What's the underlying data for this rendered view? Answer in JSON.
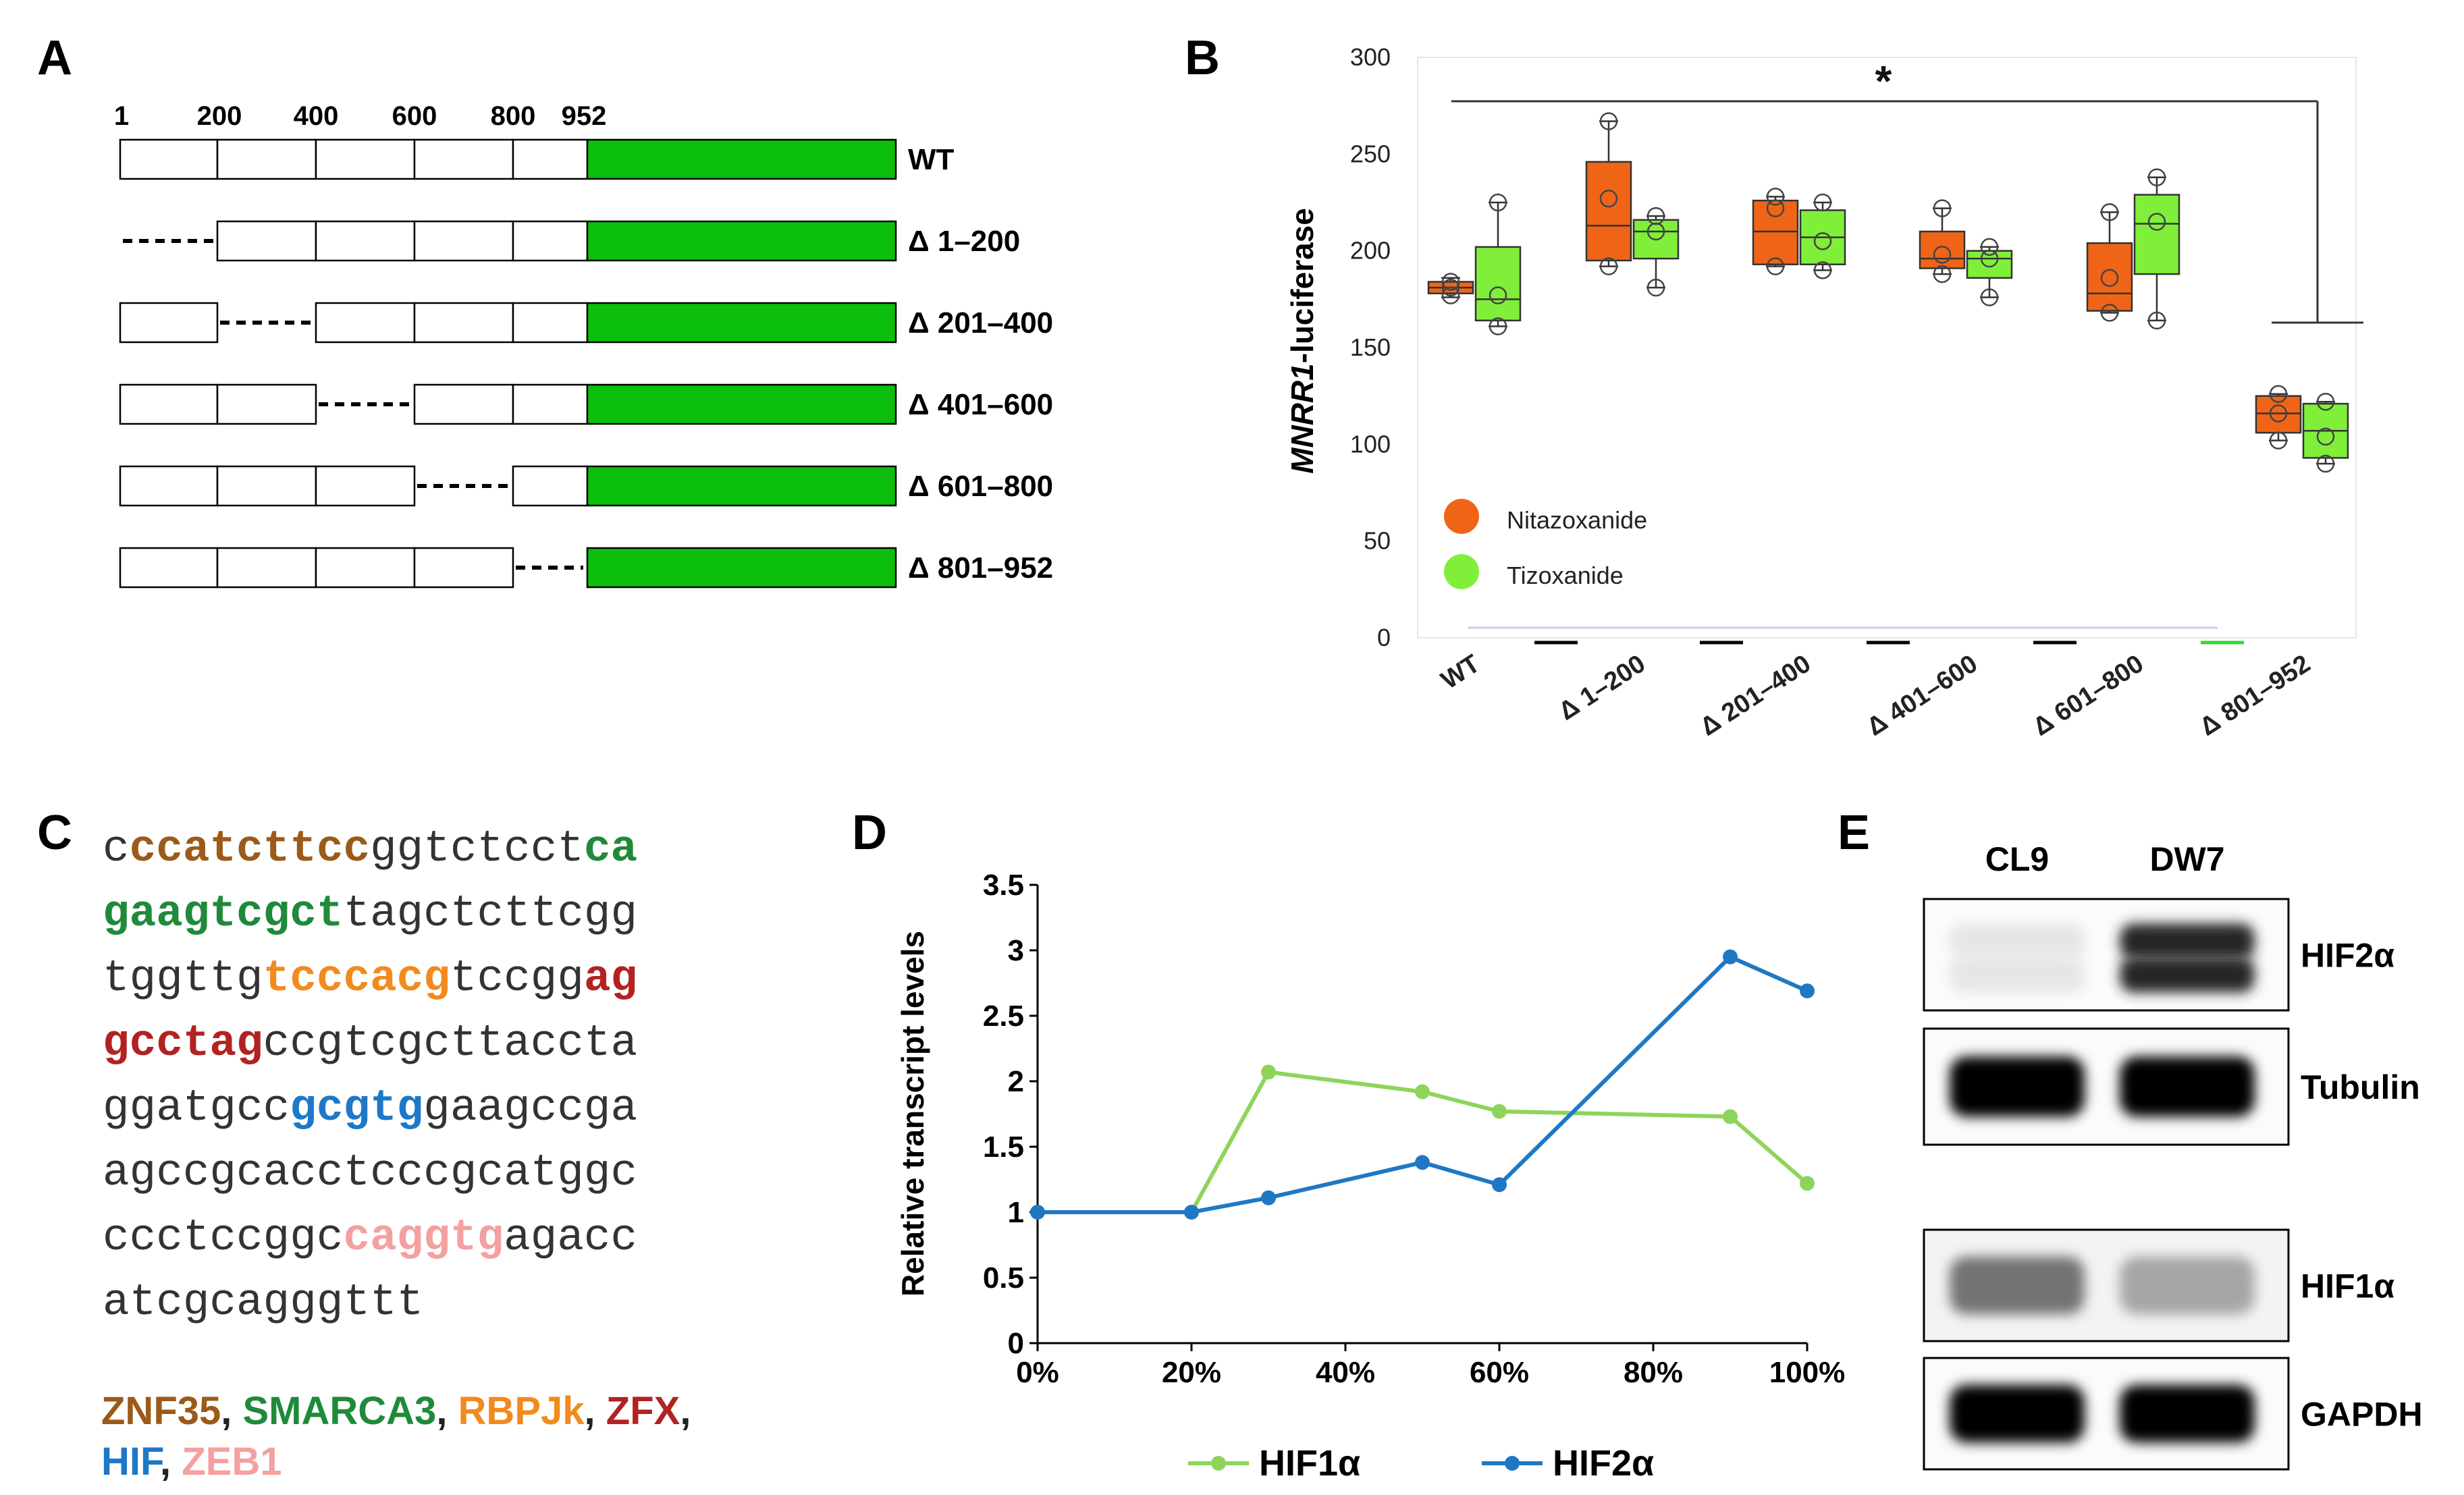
{
  "panel_labels": {
    "a": "A",
    "b": "B",
    "c": "C",
    "d": "D",
    "e": "E"
  },
  "panel_a": {
    "positions": [
      "1",
      "200",
      "400",
      "600",
      "800",
      "952"
    ],
    "constructs": [
      {
        "label": "WT",
        "deleted": null
      },
      {
        "label": "Δ 1–200",
        "deleted": 0
      },
      {
        "label": "Δ 201–400",
        "deleted": 1
      },
      {
        "label": "Δ 401–600",
        "deleted": 2
      },
      {
        "label": "Δ 601–800",
        "deleted": 3
      },
      {
        "label": "Δ 801–952",
        "deleted": 4
      }
    ],
    "reporter_color": "#0cbf0c"
  },
  "panel_c": {
    "sequence_lines": [
      [
        {
          "t": "c",
          "c": "plain"
        },
        {
          "t": "ccatcttcc",
          "c": "ZNF35"
        },
        {
          "t": "ggtctcct",
          "c": "plain"
        },
        {
          "t": "ca",
          "c": "SMARCA3"
        }
      ],
      [
        {
          "t": "gaagtcgct",
          "c": "SMARCA3"
        },
        {
          "t": "tagctcttcgg",
          "c": "plain"
        }
      ],
      [
        {
          "t": "tggttg",
          "c": "plain"
        },
        {
          "t": "tcccacg",
          "c": "RBPJk"
        },
        {
          "t": "tccgg",
          "c": "plain"
        },
        {
          "t": "ag",
          "c": "ZFX"
        }
      ],
      [
        {
          "t": "gcctag",
          "c": "ZFX"
        },
        {
          "t": "ccgtcgcttaccta",
          "c": "plain"
        }
      ],
      [
        {
          "t": "ggatgcc",
          "c": "plain"
        },
        {
          "t": "gcgtg",
          "c": "HIF"
        },
        {
          "t": "gaagccga",
          "c": "plain"
        }
      ],
      [
        {
          "t": "agccgcacctcccgcatggc",
          "c": "plain"
        }
      ],
      [
        {
          "t": "ccctccggc",
          "c": "plain"
        },
        {
          "t": "caggtg",
          "c": "ZEB1"
        },
        {
          "t": "agacc",
          "c": "plain"
        }
      ],
      [
        {
          "t": "atcgcagggttt",
          "c": "plain"
        }
      ]
    ],
    "legend_lines": [
      [
        {
          "t": "ZNF35",
          "c": "ZNF35"
        },
        {
          "t": ", ",
          "c": "plain"
        },
        {
          "t": "SMARCA3",
          "c": "SMARCA3"
        },
        {
          "t": ", ",
          "c": "plain"
        },
        {
          "t": "RBPJk",
          "c": "RBPJk"
        },
        {
          "t": ", ",
          "c": "plain"
        },
        {
          "t": "ZFX",
          "c": "ZFX"
        },
        {
          "t": ",",
          "c": "plain"
        }
      ],
      [
        {
          "t": "HIF",
          "c": "HIF"
        },
        {
          "t": ", ",
          "c": "plain"
        },
        {
          "t": "ZEB1",
          "c": "ZEB1"
        }
      ]
    ],
    "colors": {
      "plain": "#333333",
      "ZNF35": "#9c5a1a",
      "SMARCA3": "#1f8a3a",
      "RBPJk": "#f28a1e",
      "ZFX": "#b22222",
      "HIF": "#1e78c8",
      "ZEB1": "#f4a0a0"
    }
  },
  "panel_e": {
    "lanes": [
      "CL9",
      "DW7"
    ],
    "blots": [
      {
        "label": "HIF2α",
        "intensity": [
          0.1,
          0.85
        ]
      },
      {
        "label": "Tubulin",
        "intensity": [
          1.0,
          1.0
        ]
      },
      {
        "label": "HIF1α",
        "intensity": [
          0.55,
          0.35
        ]
      },
      {
        "label": "GAPDH",
        "intensity": [
          1.0,
          1.0
        ]
      }
    ]
  },
  "chart_data": [
    {
      "panel": "B",
      "type": "box",
      "ylabel_italic": "MNRR1",
      "ylabel_rest": "-luciferase",
      "ylim": [
        0,
        300
      ],
      "yticks": [
        0,
        50,
        100,
        150,
        200,
        250,
        300
      ],
      "categories": [
        "WT",
        "Δ 1–200",
        "Δ 201–400",
        "Δ 401–600",
        "Δ 601–800",
        "Δ 801–952"
      ],
      "significance": "*",
      "legend": [
        {
          "name": "Nitazoxanide",
          "color": "#f06418"
        },
        {
          "name": "Tizoxanide",
          "color": "#80ef3a"
        }
      ],
      "series": [
        {
          "name": "Nitazoxanide",
          "color": "#f06418",
          "boxes": [
            {
              "min": 176,
              "q1": 178,
              "median": 181,
              "q3": 184,
              "max": 186,
              "points": [
                177,
                181,
                184
              ]
            },
            {
              "min": 192,
              "q1": 195,
              "median": 213,
              "q3": 246,
              "max": 267,
              "points": [
                192,
                227,
                267
              ]
            },
            {
              "min": 192,
              "q1": 193,
              "median": 210,
              "q3": 226,
              "max": 228,
              "points": [
                192,
                222,
                228
              ]
            },
            {
              "min": 188,
              "q1": 191,
              "median": 196,
              "q3": 210,
              "max": 222,
              "points": [
                188,
                198,
                222
              ]
            },
            {
              "min": 168,
              "q1": 169,
              "median": 178,
              "q3": 204,
              "max": 220,
              "points": [
                168,
                186,
                220
              ]
            },
            {
              "min": 102,
              "q1": 106,
              "median": 116,
              "q3": 125,
              "max": 126,
              "points": [
                102,
                116,
                126
              ]
            }
          ]
        },
        {
          "name": "Tizoxanide",
          "color": "#80ef3a",
          "boxes": [
            {
              "min": 161,
              "q1": 164,
              "median": 175,
              "q3": 202,
              "max": 225,
              "points": [
                161,
                177,
                225
              ]
            },
            {
              "min": 181,
              "q1": 196,
              "median": 210,
              "q3": 216,
              "max": 218,
              "points": [
                181,
                210,
                218
              ]
            },
            {
              "min": 190,
              "q1": 193,
              "median": 207,
              "q3": 221,
              "max": 225,
              "points": [
                190,
                205,
                225
              ]
            },
            {
              "min": 176,
              "q1": 186,
              "median": 196,
              "q3": 200,
              "max": 202,
              "points": [
                176,
                196,
                202
              ]
            },
            {
              "min": 164,
              "q1": 188,
              "median": 214,
              "q3": 229,
              "max": 238,
              "points": [
                164,
                215,
                238
              ]
            },
            {
              "min": 90,
              "q1": 93,
              "median": 107,
              "q3": 121,
              "max": 122,
              "points": [
                90,
                104,
                122
              ]
            }
          ]
        }
      ]
    },
    {
      "panel": "D",
      "type": "line",
      "ylabel": "Relative transcript levels",
      "ylim": [
        0,
        3.5
      ],
      "yticks": [
        "0",
        "0.5",
        "1",
        "1.5",
        "2",
        "2.5",
        "3",
        "3.5"
      ],
      "xlim": [
        0,
        100
      ],
      "xticks": [
        "0%",
        "20%",
        "40%",
        "60%",
        "80%",
        "100%"
      ],
      "series": [
        {
          "name": "HIF1α",
          "color": "#8fd45a",
          "x": [
            0,
            20,
            30,
            50,
            60,
            90,
            100
          ],
          "y": [
            1.0,
            1.0,
            2.07,
            1.92,
            1.77,
            1.73,
            1.22
          ]
        },
        {
          "name": "HIF2α",
          "color": "#1f78c4",
          "x": [
            0,
            20,
            30,
            50,
            60,
            90,
            100
          ],
          "y": [
            1.0,
            1.0,
            1.11,
            1.38,
            1.21,
            2.95,
            2.69
          ]
        }
      ]
    }
  ]
}
